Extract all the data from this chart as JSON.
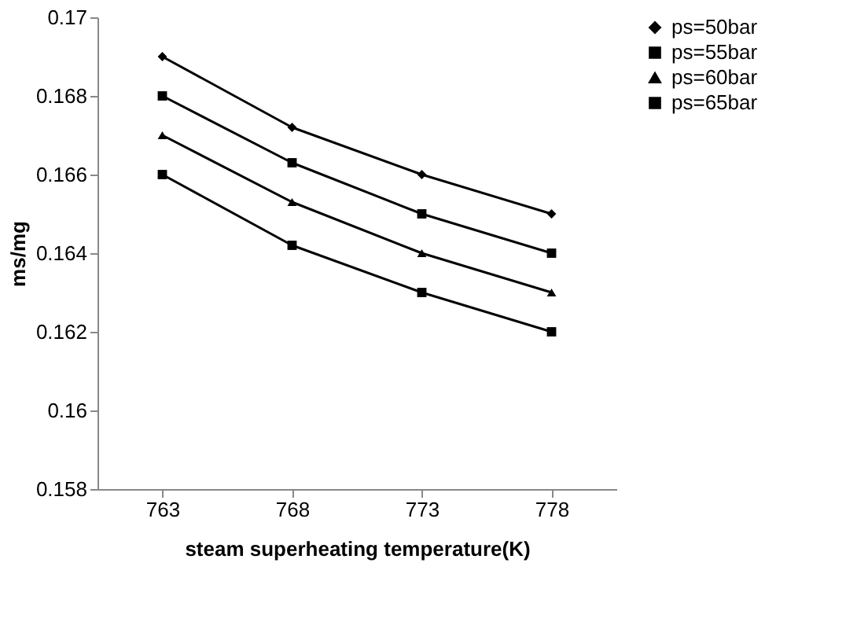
{
  "chart_data": {
    "type": "line",
    "xlabel": "steam superheating temperature(K)",
    "ylabel": "ms/mg",
    "categories": [
      "763",
      "768",
      "773",
      "778"
    ],
    "series": [
      {
        "name": "ps=50bar",
        "color": "#000000",
        "marker": "diamond",
        "values": [
          0.169,
          0.1672,
          0.166,
          0.165
        ]
      },
      {
        "name": "ps=55bar",
        "color": "#000000",
        "marker": "square",
        "values": [
          0.168,
          0.1663,
          0.165,
          0.164
        ]
      },
      {
        "name": "ps=60bar",
        "color": "#000000",
        "marker": "triangle",
        "values": [
          0.167,
          0.1653,
          0.164,
          0.163
        ]
      },
      {
        "name": "ps=65bar",
        "color": "#000000",
        "marker": "square",
        "values": [
          0.166,
          0.1642,
          0.163,
          0.162
        ]
      }
    ],
    "ylim": [
      0.158,
      0.17
    ],
    "yticks": [
      0.158,
      0.16,
      0.162,
      0.164,
      0.166,
      0.168,
      0.17
    ],
    "grid": false,
    "legend": "right",
    "line_style": "solid"
  }
}
